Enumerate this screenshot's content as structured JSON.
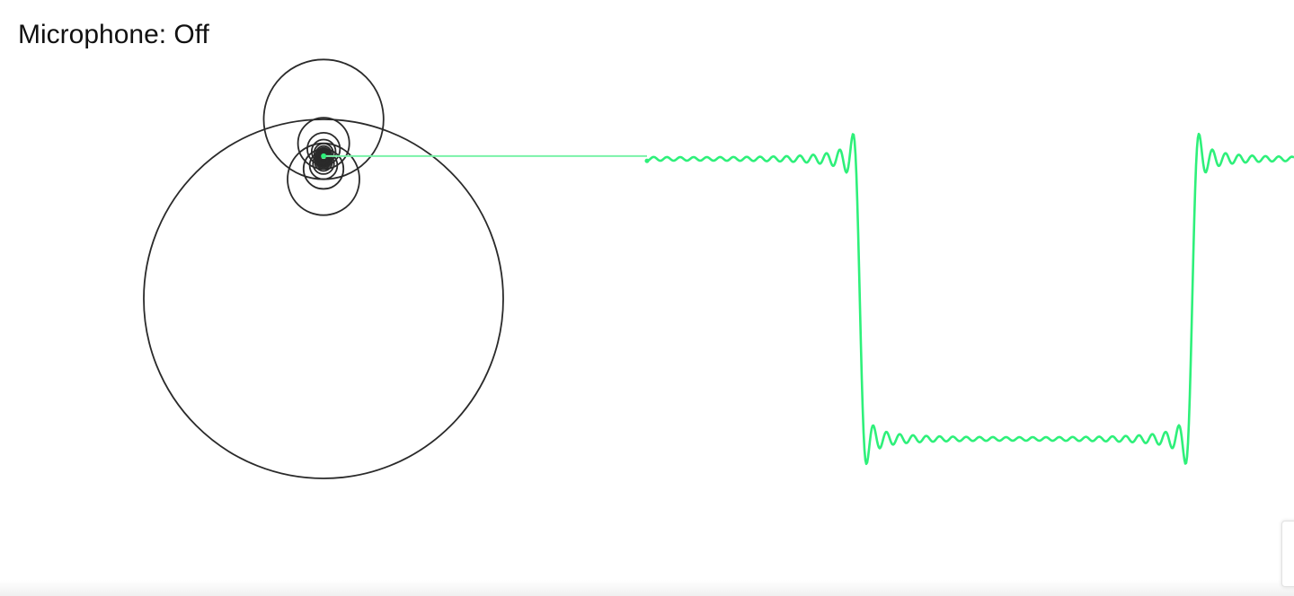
{
  "status": {
    "microphone_label": "Microphone: Off"
  },
  "colors": {
    "background": "#ffffff",
    "circle_stroke": "#2a2a2a",
    "wave": "#2ef07a",
    "connector": "#7af2a8"
  },
  "visualization": {
    "waveform": "square",
    "harmonics": "odd",
    "terms": 25
  }
}
